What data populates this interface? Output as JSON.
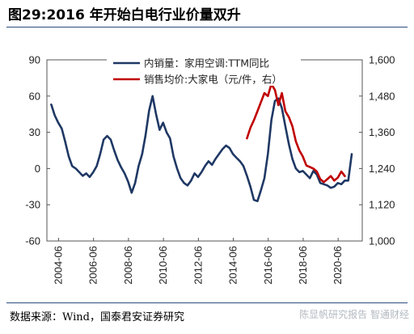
{
  "title": "图29:2016 年开始白电行业价量双升",
  "source": "数据来源：Wind，国泰君安证券研究",
  "watermark": "陈显帆研究报告 智通财经",
  "chart_data": {
    "type": "line",
    "title": "图29:2016 年开始白电行业价量双升",
    "legend_position": "top-center",
    "left_axis": {
      "ylim": [
        -60,
        90
      ],
      "ticks": [
        -60,
        -30,
        0,
        30,
        60,
        90
      ]
    },
    "right_axis": {
      "ylim": [
        1000,
        1600
      ],
      "ticks": [
        "1,000",
        "1,120",
        "1,240",
        "1,360",
        "1,480",
        "1,600"
      ]
    },
    "x_ticks": [
      "2004-06",
      "2006-06",
      "2008-06",
      "2010-06",
      "2012-06",
      "2014-06",
      "2016-06",
      "2018-06",
      "2020-06"
    ],
    "series": [
      {
        "name": "内销量：家用空调:TTM同比",
        "axis": "left",
        "color": "#1f3864",
        "x": [
          2004.0,
          2004.2,
          2004.4,
          2004.6,
          2004.8,
          2005.0,
          2005.2,
          2005.4,
          2005.6,
          2005.8,
          2006.0,
          2006.2,
          2006.4,
          2006.6,
          2006.8,
          2007.0,
          2007.2,
          2007.4,
          2007.6,
          2007.8,
          2008.0,
          2008.2,
          2008.4,
          2008.6,
          2008.8,
          2009.0,
          2009.2,
          2009.4,
          2009.6,
          2009.8,
          2010.0,
          2010.2,
          2010.4,
          2010.6,
          2010.8,
          2011.0,
          2011.2,
          2011.4,
          2011.6,
          2011.8,
          2012.0,
          2012.2,
          2012.4,
          2012.6,
          2012.8,
          2013.0,
          2013.2,
          2013.4,
          2013.6,
          2013.8,
          2014.0,
          2014.2,
          2014.4,
          2014.6,
          2014.8,
          2015.0,
          2015.2,
          2015.4,
          2015.6,
          2015.8,
          2016.0,
          2016.2,
          2016.4,
          2016.6,
          2016.8,
          2017.0,
          2017.2,
          2017.4,
          2017.6,
          2017.8,
          2018.0,
          2018.2,
          2018.4,
          2018.6,
          2018.8,
          2019.0,
          2019.2,
          2019.4,
          2019.6,
          2019.8,
          2020.0,
          2020.2,
          2020.4,
          2020.6,
          2020.8,
          2021.0,
          2021.2
        ],
        "y": [
          53,
          44,
          38,
          33,
          22,
          10,
          2,
          0,
          -3,
          -6,
          -4,
          -7,
          -3,
          2,
          12,
          24,
          27,
          24,
          15,
          7,
          1,
          -4,
          -11,
          -20,
          -12,
          2,
          12,
          28,
          48,
          60,
          45,
          32,
          38,
          30,
          25,
          10,
          0,
          -8,
          -12,
          -14,
          -10,
          -4,
          -7,
          -3,
          2,
          6,
          3,
          8,
          12,
          16,
          19,
          17,
          12,
          9,
          6,
          2,
          -6,
          -15,
          -26,
          -27,
          -18,
          -8,
          12,
          40,
          56,
          58,
          50,
          35,
          20,
          8,
          0,
          -3,
          -2,
          -5,
          -8,
          -2,
          -5,
          -12,
          -13,
          -14,
          -16,
          -15,
          -12,
          -13,
          -10,
          -10,
          12
        ]
      },
      {
        "name": "销售均价:大家电（元/件，右）",
        "axis": "right",
        "color": "#c00000",
        "x": [
          2015.2,
          2015.4,
          2015.6,
          2015.8,
          2016.0,
          2016.2,
          2016.4,
          2016.6,
          2016.8,
          2017.0,
          2017.2,
          2017.4,
          2017.6,
          2017.8,
          2018.0,
          2018.2,
          2018.4,
          2018.6,
          2018.8,
          2019.0,
          2019.2,
          2019.4,
          2019.6,
          2019.8,
          2020.0,
          2020.2,
          2020.4,
          2020.6,
          2020.8
        ],
        "y": [
          1340,
          1375,
          1400,
          1430,
          1460,
          1490,
          1480,
          1520,
          1500,
          1450,
          1490,
          1430,
          1410,
          1380,
          1330,
          1300,
          1280,
          1250,
          1245,
          1240,
          1230,
          1205,
          1195,
          1205,
          1215,
          1200,
          1210,
          1230,
          1215
        ]
      }
    ]
  }
}
